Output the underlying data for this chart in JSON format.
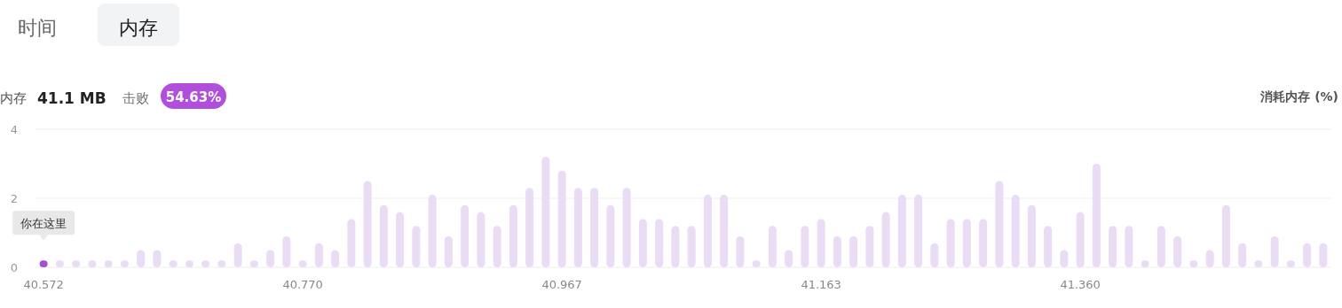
{
  "chart_data": {
    "type": "bar",
    "ylabel": "消耗内存 (%)",
    "categories": [
      "40.572",
      null,
      null,
      null,
      null,
      null,
      null,
      null,
      null,
      null,
      null,
      null,
      null,
      null,
      null,
      null,
      "40.770",
      null,
      null,
      null,
      null,
      null,
      null,
      null,
      null,
      null,
      null,
      null,
      null,
      null,
      null,
      null,
      "40.967",
      null,
      null,
      null,
      null,
      null,
      null,
      null,
      null,
      null,
      null,
      null,
      null,
      null,
      null,
      null,
      "41.163",
      null,
      null,
      null,
      null,
      null,
      null,
      null,
      null,
      null,
      null,
      null,
      null,
      null,
      null,
      null,
      "41.360",
      null,
      null,
      null,
      null,
      null,
      null,
      null,
      null,
      null,
      null,
      null,
      null,
      null,
      null,
      null
    ],
    "values": [
      0.2,
      0.2,
      0.2,
      0.2,
      0.2,
      0.2,
      0.5,
      0.5,
      0.2,
      0.2,
      0.2,
      0.2,
      0.7,
      0.2,
      0.5,
      0.9,
      0.2,
      0.7,
      0.5,
      1.4,
      2.5,
      1.8,
      1.6,
      1.2,
      2.1,
      0.9,
      1.8,
      1.6,
      1.2,
      1.8,
      2.3,
      3.2,
      2.8,
      2.3,
      2.3,
      1.8,
      2.3,
      1.4,
      1.4,
      1.2,
      1.2,
      2.1,
      2.1,
      0.9,
      0.2,
      1.2,
      0.5,
      1.2,
      1.4,
      0.9,
      0.9,
      1.2,
      1.6,
      2.1,
      2.1,
      0.7,
      1.4,
      1.4,
      1.4,
      2.5,
      2.1,
      1.8,
      1.2,
      0.5,
      1.6,
      3.0,
      1.2,
      1.2,
      0.2,
      1.2,
      0.9,
      0.2,
      0.5,
      1.8,
      0.7,
      0.2,
      0.9,
      0.2,
      0.7,
      0.7
    ],
    "colors": [
      "#a64fd6",
      "#e9dcf4",
      "#e9dcf4",
      "#e9dcf4",
      "#e9dcf4",
      "#e9dcf4",
      "#e9dcf4",
      "#e9dcf4",
      "#e9dcf4",
      "#e9dcf4",
      "#e9dcf4",
      "#e9dcf4",
      "#e9dcf4",
      "#e9dcf4",
      "#e9dcf4",
      "#e9dcf4",
      "#e9dcf4",
      "#e9dcf4",
      "#e9dcf4",
      "#e9dcf4",
      "#e9dcf4",
      "#e9dcf4",
      "#e9dcf4",
      "#e9dcf4",
      "#e9dcf4",
      "#e9dcf4",
      "#e9dcf4",
      "#e9dcf4",
      "#e9dcf4",
      "#e9dcf4",
      "#e9dcf4",
      "#e9dcf4",
      "#e9dcf4",
      "#e9dcf4",
      "#e9dcf4",
      "#e9dcf4",
      "#e9dcf4",
      "#e9dcf4",
      "#e9dcf4",
      "#e9dcf4",
      "#e9dcf4",
      "#e9dcf4",
      "#e9dcf4",
      "#e9dcf4",
      "#e9dcf4",
      "#e9dcf4",
      "#e9dcf4",
      "#e9dcf4",
      "#e9dcf4",
      "#e9dcf4",
      "#e9dcf4",
      "#e9dcf4",
      "#e9dcf4",
      "#e9dcf4",
      "#e9dcf4",
      "#e9dcf4",
      "#e9dcf4",
      "#e9dcf4",
      "#e9dcf4",
      "#e9dcf4",
      "#e9dcf4",
      "#e9dcf4",
      "#e9dcf4",
      "#e9dcf4",
      "#e9dcf4",
      "#e9dcf4",
      "#e9dcf4",
      "#e9dcf4",
      "#e9dcf4",
      "#e9dcf4",
      "#e9dcf4",
      "#e9dcf4",
      "#e9dcf4",
      "#e9dcf4",
      "#e9dcf4",
      "#e9dcf4",
      "#e9dcf4",
      "#e9dcf4",
      "#e9dcf4",
      "#e9dcf4"
    ],
    "ylim": [
      0,
      4
    ],
    "yticks": [
      0,
      2,
      4
    ],
    "grid": "y",
    "annotations": [
      "时间",
      "内存",
      "内存",
      "41.1 MB",
      "击败",
      "54.63%",
      {
        "text": "你在这里",
        "x": "40.572",
        "y": 0.2
      }
    ]
  }
}
